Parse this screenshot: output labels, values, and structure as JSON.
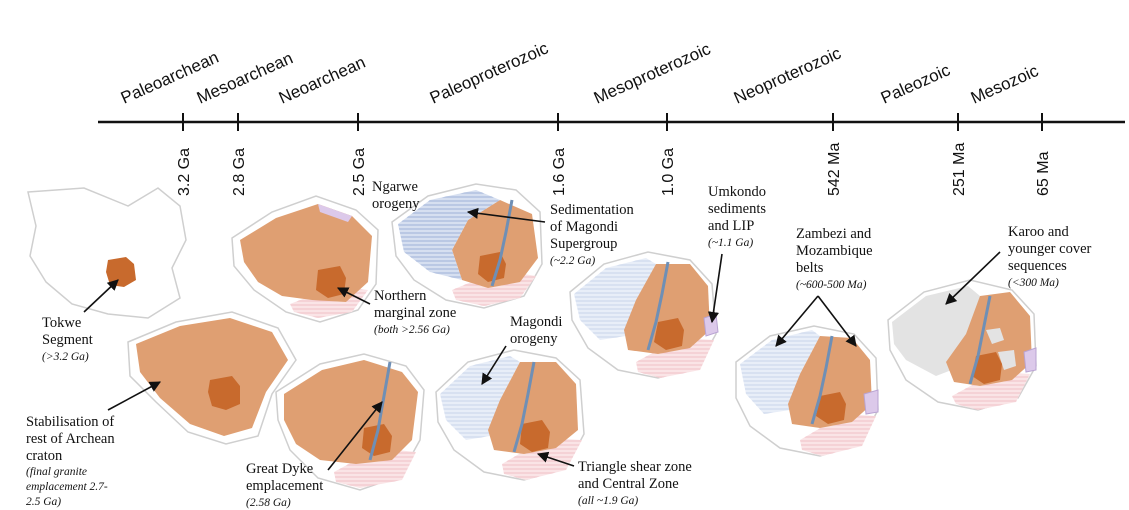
{
  "timeline": {
    "eras": [
      "Paleoarchean",
      "Mesoarchean",
      "Neoarchean",
      "Paleoproterozoic",
      "Mesoproterozoic",
      "Neoproterozoic",
      "Paleozoic",
      "Mesozoic"
    ],
    "ticks": [
      "3.2 Ga",
      "2.8 Ga",
      "2.5 Ga",
      "1.6 Ga",
      "1.0 Ga",
      "542 Ma",
      "251 Ma",
      "65 Ma"
    ]
  },
  "annotations": {
    "tokwe": {
      "line1": "Tokwe",
      "line2": "Segment",
      "note": "(>3.2 Ga)"
    },
    "stabilisation": {
      "line1": "Stabilisation of",
      "line2": "rest of Archean",
      "line3": "craton",
      "note1": "(final granite",
      "note2": "emplacement 2.7-",
      "note3": "2.5 Ga)"
    },
    "ngarwe": {
      "line1": "Ngarwe",
      "line2": "orogeny"
    },
    "northern": {
      "line1": "Northern",
      "line2": "marginal zone",
      "note": "(both >2.56 Ga)"
    },
    "great_dyke": {
      "line1": "Great Dyke",
      "line2": "emplacement",
      "note": "(2.58 Ga)"
    },
    "sedimentation": {
      "line1": "Sedimentation",
      "line2": "of Magondi",
      "line3": "Supergroup",
      "note": "(~2.2 Ga)"
    },
    "magondi": {
      "line1": "Magondi",
      "line2": "orogeny"
    },
    "triangle": {
      "line1": "Triangle shear zone",
      "line2": "and Central Zone",
      "note": "(all ~1.9 Ga)"
    },
    "umkondo": {
      "line1": "Umkondo",
      "line2": "sediments",
      "line3": "and LIP",
      "note": "(~1.1 Ga)"
    },
    "zambezi": {
      "line1": "Zambezi and",
      "line2": "Mozambique",
      "line3": "belts",
      "note": "(~600-500 Ma)"
    },
    "karoo": {
      "line1": "Karoo and",
      "line2": "younger cover",
      "line3": "sequences",
      "note": "(<300 Ma)"
    }
  },
  "colors": {
    "craton": "#df9f72",
    "core": "#c86a2d",
    "outline": "#cfcfcf",
    "dyke": "#6f8fb5",
    "magondi_blue": "#b9c8e4",
    "pink_zone": "#f6d7da",
    "purple_zone": "#dcc9ea",
    "karoo_grey": "#e3e3e3"
  }
}
